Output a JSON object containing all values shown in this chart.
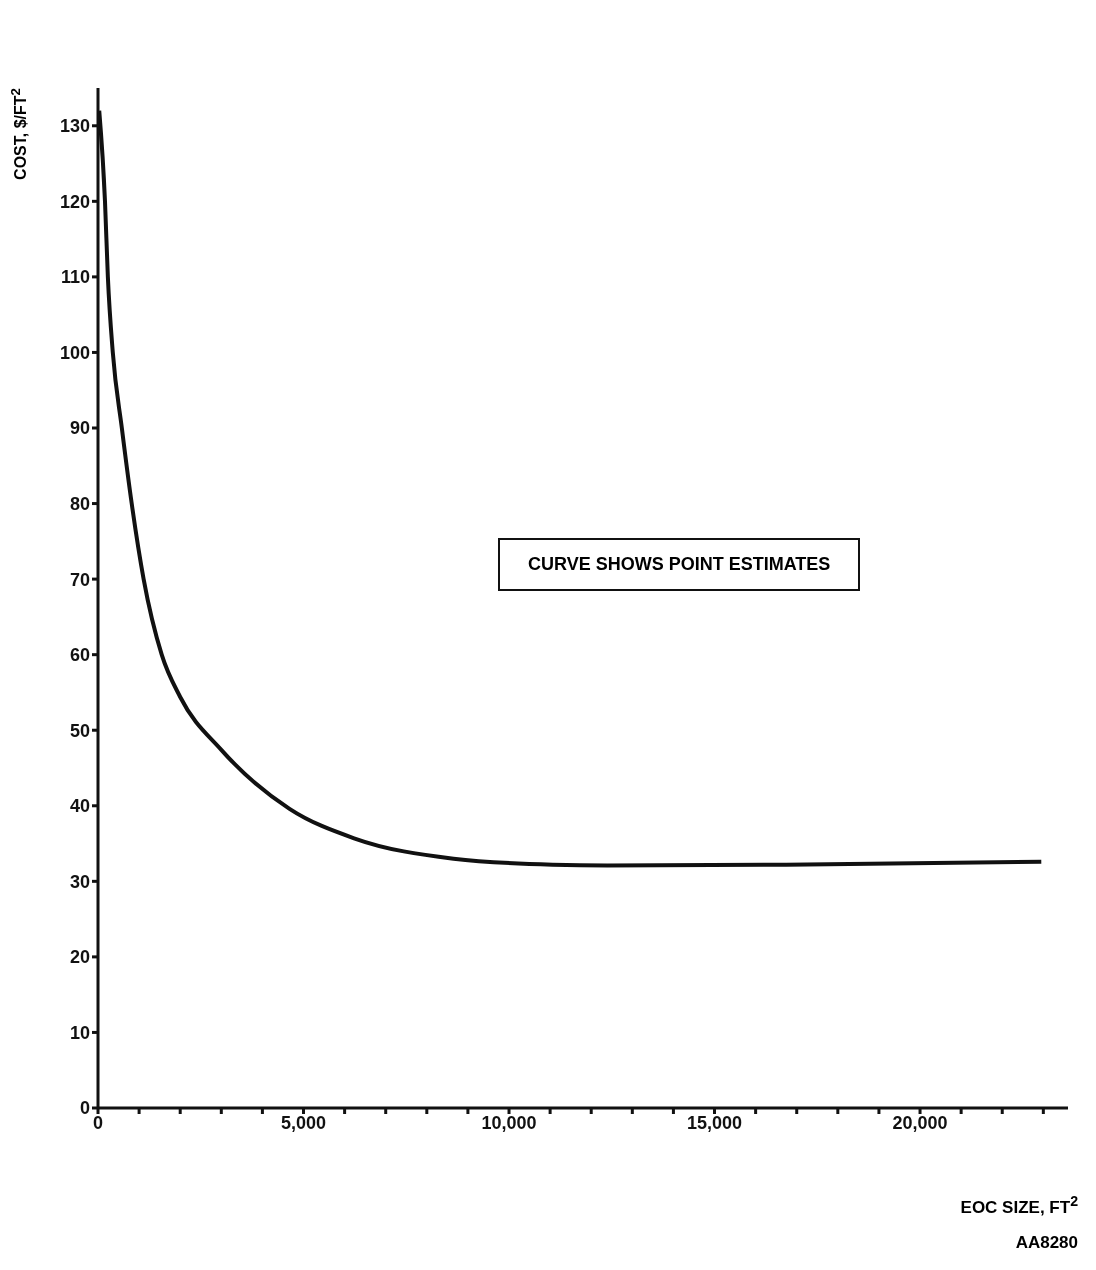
{
  "chart_data": {
    "type": "line",
    "xlabel": "EOC SIZE, FT$^{2}$",
    "ylabel": "COST, $/FT$^{2}$",
    "annotations": [
      "CURVE SHOWS POINT ESTIMATES",
      "AA8280"
    ],
    "x": [
      30,
      170,
      240,
      360,
      580,
      820,
      1110,
      1550,
      2000,
      3000,
      4660,
      6230,
      8650,
      11060,
      12390,
      16740,
      22950
    ],
    "series": [
      {
        "color": "#111111",
        "values": [
          132,
          120,
          110,
          100,
          90,
          80,
          70,
          60,
          54.4,
          47.4,
          39.6,
          35.7,
          33,
          32.2,
          32.1,
          32.2,
          32.6
        ]
      }
    ],
    "xlim": [
      0,
      23600
    ],
    "xticks": [
      0,
      {
        "value": 1000,
        "label": null
      },
      {
        "value": 2000,
        "label": null
      },
      {
        "value": 3000,
        "label": null
      },
      {
        "value": 4000,
        "label": null
      },
      {
        "value": 5000,
        "label": "5,000"
      },
      {
        "value": 6000,
        "label": null
      },
      {
        "value": 7000,
        "label": null
      },
      {
        "value": 8000,
        "label": null
      },
      {
        "value": 9000,
        "label": null
      },
      {
        "value": 10000,
        "label": "10,000"
      },
      {
        "value": 11000,
        "label": null
      },
      {
        "value": 12000,
        "label": null
      },
      {
        "value": 13000,
        "label": null
      },
      {
        "value": 14000,
        "label": null
      },
      {
        "value": 15000,
        "label": "15,000"
      },
      {
        "value": 16000,
        "label": null
      },
      {
        "value": 17000,
        "label": null
      },
      {
        "value": 18000,
        "label": null
      },
      {
        "value": 19000,
        "label": null
      },
      {
        "value": 20000,
        "label": "20,000"
      },
      {
        "value": 21000,
        "label": null
      },
      {
        "value": 22000,
        "label": null
      },
      {
        "value": 23000,
        "label": null
      }
    ],
    "ylim": [
      0,
      135
    ],
    "yticks": [
      0,
      10,
      20,
      30,
      40,
      50,
      60,
      70,
      80,
      90,
      100,
      110,
      120,
      130
    ],
    "grid": false,
    "marker": "none",
    "line_style": "solid"
  }
}
